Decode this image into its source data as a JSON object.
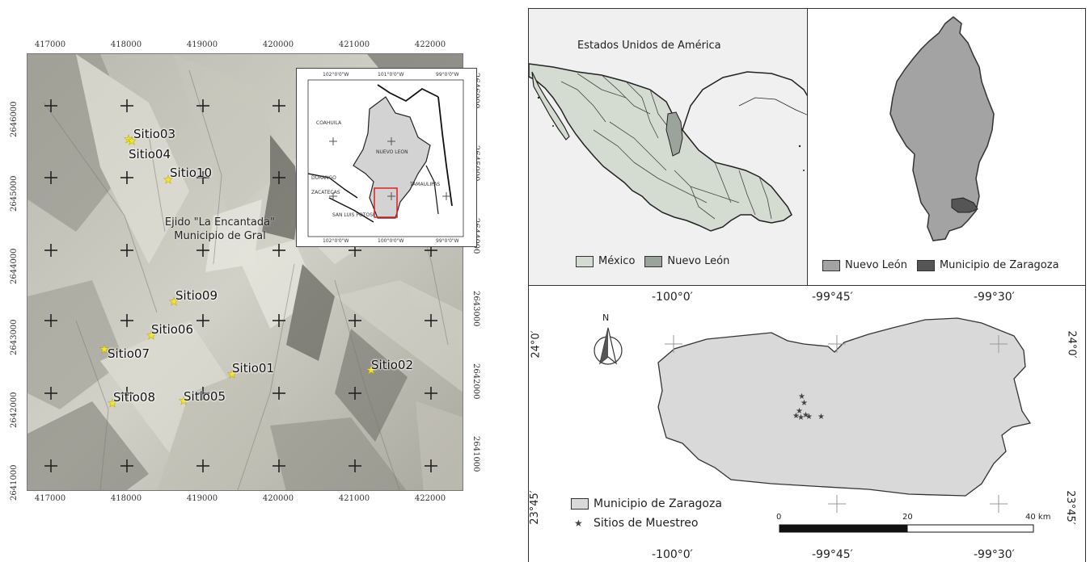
{
  "left_map": {
    "x_ticks": [
      "417000",
      "418000",
      "419000",
      "420000",
      "421000",
      "422000"
    ],
    "y_ticks": [
      "2646000",
      "2645000",
      "2644000",
      "2643000",
      "2642000",
      "2641000"
    ],
    "sites": [
      {
        "label": "Sitio03"
      },
      {
        "label": "Sitio04"
      },
      {
        "label": "Sitio10"
      },
      {
        "label": "Sitio09"
      },
      {
        "label": "Sitio06"
      },
      {
        "label": "Sitio07"
      },
      {
        "label": "Sitio01"
      },
      {
        "label": "Sitio02"
      },
      {
        "label": "Sitio08"
      },
      {
        "label": "Sitio05"
      }
    ],
    "annotation_line1": "Ejido \"La Encantada\"",
    "annotation_line2": "Municipio de Gral",
    "inset": {
      "top_ticks": [
        "102°0'0\"W",
        "101°0'0\"W",
        "99°0'0\"W"
      ],
      "bottom_ticks": [
        "102°0'0\"W",
        "100°0'0\"W",
        "99°0'0\"W"
      ],
      "labels": [
        "COAHUILA",
        "NUEVO LEON",
        "DURANGO",
        "ZACATECAS",
        "TAMAULIPAS",
        "SAN LUIS POTOSI"
      ],
      "highlight_color": "#e02020"
    }
  },
  "mexico_panel": {
    "title": "Estados Unidos de América",
    "legend": [
      {
        "label": "México",
        "color": "#d4dcd2"
      },
      {
        "label": "Nuevo León",
        "color": "#9aa49a"
      }
    ]
  },
  "nl_panel": {
    "legend": [
      {
        "label": "Nuevo León",
        "color": "#a3a3a3"
      },
      {
        "label": "Municipio de Zaragoza",
        "color": "#555555"
      }
    ]
  },
  "zaragoza_panel": {
    "top_coords": [
      "-100°0′",
      "-99°45′",
      "-99°30′"
    ],
    "bottom_coords": [
      "-100°0′",
      "-99°45′",
      "-99°30′"
    ],
    "left_coords": [
      "24°0′",
      "23°45′"
    ],
    "right_coords": [
      "24°0′",
      "23°45′"
    ],
    "north_label": "N",
    "legend": [
      {
        "label": "Municipio de Zaragoza",
        "color": "#d9d9d9"
      },
      {
        "label": "Sitios de Muestreo",
        "symbol": "★"
      }
    ],
    "scale": {
      "labels": [
        "0",
        "20",
        "40 km"
      ]
    }
  }
}
